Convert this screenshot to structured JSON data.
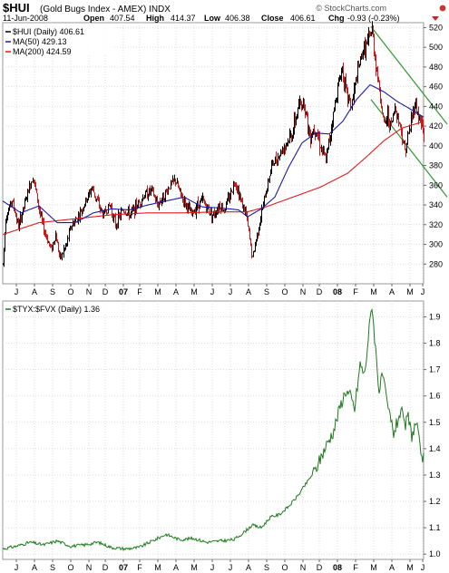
{
  "chart_data": [
    {
      "type": "ohlc-line",
      "title": "$HUI",
      "subtitle": "(Gold Bugs Index - AMEX) INDX",
      "date": "11-Jun-2008",
      "quote": {
        "open_label": "Open",
        "open": "407.54",
        "high_label": "High",
        "high": "414.37",
        "low_label": "Low",
        "low": "406.38",
        "close_label": "Close",
        "close": "406.61",
        "chg_label": "Chg",
        "chg": "-0.93 (-0.23%)"
      },
      "watermark": "© StockCharts.com",
      "legend": [
        {
          "label": "$HUI (Daily) 406.61",
          "color": "#000000"
        },
        {
          "label": "MA(50) 429.13",
          "color": "#1c1ca8"
        },
        {
          "label": "MA(200) 424.59",
          "color": "#dd1c1c"
        }
      ],
      "ylim": [
        260,
        525
      ],
      "y_ticks": [
        280,
        300,
        320,
        340,
        360,
        380,
        400,
        420,
        440,
        460,
        480,
        500,
        520
      ],
      "x_ticks": [
        "J",
        "A",
        "S",
        "O",
        "N",
        "D",
        "07",
        "F",
        "M",
        "A",
        "M",
        "J",
        "J",
        "A",
        "S",
        "O",
        "N",
        "D",
        "08",
        "F",
        "M",
        "A",
        "M",
        "J"
      ],
      "bold_ticks": [
        "07",
        "08"
      ],
      "price_keys": [
        [
          0,
          280
        ],
        [
          3,
          328
        ],
        [
          10,
          345
        ],
        [
          17,
          318
        ],
        [
          28,
          355
        ],
        [
          33,
          370
        ],
        [
          41,
          330
        ],
        [
          45,
          315
        ],
        [
          53,
          295
        ],
        [
          58,
          310
        ],
        [
          63,
          285
        ],
        [
          70,
          300
        ],
        [
          75,
          318
        ],
        [
          84,
          330
        ],
        [
          92,
          345
        ],
        [
          98,
          358
        ],
        [
          102,
          348
        ],
        [
          110,
          330
        ],
        [
          118,
          340
        ],
        [
          124,
          320
        ],
        [
          132,
          335
        ],
        [
          140,
          330
        ],
        [
          148,
          340
        ],
        [
          156,
          350
        ],
        [
          164,
          355
        ],
        [
          170,
          340
        ],
        [
          178,
          350
        ],
        [
          184,
          360
        ],
        [
          190,
          365
        ],
        [
          196,
          350
        ],
        [
          202,
          340
        ],
        [
          208,
          330
        ],
        [
          214,
          340
        ],
        [
          220,
          345
        ],
        [
          226,
          335
        ],
        [
          232,
          330
        ],
        [
          238,
          340
        ],
        [
          244,
          335
        ],
        [
          250,
          350
        ],
        [
          256,
          365
        ],
        [
          262,
          345
        ],
        [
          268,
          330
        ],
        [
          272,
          305
        ],
        [
          275,
          285
        ],
        [
          280,
          310
        ],
        [
          288,
          345
        ],
        [
          296,
          380
        ],
        [
          304,
          390
        ],
        [
          310,
          400
        ],
        [
          318,
          410
        ],
        [
          326,
          440
        ],
        [
          332,
          445
        ],
        [
          338,
          410
        ],
        [
          344,
          420
        ],
        [
          350,
          400
        ],
        [
          356,
          385
        ],
        [
          362,
          420
        ],
        [
          368,
          455
        ],
        [
          374,
          480
        ],
        [
          378,
          455
        ],
        [
          384,
          440
        ],
        [
          390,
          470
        ],
        [
          396,
          495
        ],
        [
          402,
          505
        ],
        [
          407,
          518
        ],
        [
          410,
          490
        ],
        [
          416,
          450
        ],
        [
          420,
          420
        ],
        [
          424,
          430
        ],
        [
          428,
          420
        ],
        [
          432,
          440
        ],
        [
          438,
          420
        ],
        [
          443,
          395
        ],
        [
          449,
          420
        ],
        [
          454,
          445
        ],
        [
          458,
          430
        ],
        [
          462,
          420
        ],
        [
          464,
          406.61
        ]
      ],
      "ma50_keys": [
        [
          0,
          344
        ],
        [
          20,
          332
        ],
        [
          40,
          339
        ],
        [
          60,
          322
        ],
        [
          80,
          322
        ],
        [
          100,
          332
        ],
        [
          120,
          336
        ],
        [
          140,
          335
        ],
        [
          160,
          340
        ],
        [
          180,
          344
        ],
        [
          200,
          348
        ],
        [
          220,
          338
        ],
        [
          240,
          337
        ],
        [
          260,
          335
        ],
        [
          270,
          328
        ],
        [
          285,
          336
        ],
        [
          300,
          348
        ],
        [
          315,
          378
        ],
        [
          330,
          403
        ],
        [
          345,
          413
        ],
        [
          360,
          412
        ],
        [
          375,
          425
        ],
        [
          390,
          447
        ],
        [
          405,
          462
        ],
        [
          420,
          455
        ],
        [
          435,
          445
        ],
        [
          450,
          437
        ],
        [
          464,
          429.13
        ]
      ],
      "ma200_keys": [
        [
          0,
          310
        ],
        [
          40,
          322
        ],
        [
          80,
          326
        ],
        [
          120,
          330
        ],
        [
          160,
          332
        ],
        [
          200,
          332
        ],
        [
          240,
          333
        ],
        [
          270,
          333
        ],
        [
          290,
          338
        ],
        [
          320,
          348
        ],
        [
          350,
          358
        ],
        [
          380,
          372
        ],
        [
          400,
          388
        ],
        [
          420,
          405
        ],
        [
          440,
          418
        ],
        [
          464,
          424.59
        ]
      ],
      "trend_lines": [
        {
          "from": [
            409,
            521
          ],
          "to": [
            493,
            422
          ]
        },
        {
          "from": [
            409,
            447
          ],
          "to": [
            493,
            348
          ]
        }
      ]
    },
    {
      "type": "line",
      "legend": [
        {
          "label": "$TYX:$FVX (Daily) 1.36",
          "color": "#1e7a1e"
        }
      ],
      "ylim": [
        0.98,
        1.96
      ],
      "y_ticks": [
        1.0,
        1.1,
        1.2,
        1.3,
        1.4,
        1.5,
        1.6,
        1.7,
        1.8,
        1.9
      ],
      "x_ticks": [
        "J",
        "A",
        "S",
        "O",
        "N",
        "D",
        "07",
        "F",
        "M",
        "A",
        "M",
        "J",
        "J",
        "A",
        "S",
        "O",
        "N",
        "D",
        "08",
        "F",
        "M",
        "A",
        "M",
        "J"
      ],
      "bold_ticks": [
        "07",
        "08"
      ],
      "ratio_keys": [
        [
          0,
          1.02
        ],
        [
          15,
          1.03
        ],
        [
          30,
          1.045
        ],
        [
          45,
          1.035
        ],
        [
          60,
          1.05
        ],
        [
          75,
          1.03
        ],
        [
          90,
          1.035
        ],
        [
          105,
          1.045
        ],
        [
          120,
          1.025
        ],
        [
          135,
          1.02
        ],
        [
          150,
          1.025
        ],
        [
          165,
          1.05
        ],
        [
          180,
          1.075
        ],
        [
          195,
          1.055
        ],
        [
          210,
          1.06
        ],
        [
          225,
          1.045
        ],
        [
          240,
          1.05
        ],
        [
          255,
          1.055
        ],
        [
          265,
          1.08
        ],
        [
          275,
          1.11
        ],
        [
          285,
          1.1
        ],
        [
          295,
          1.14
        ],
        [
          305,
          1.15
        ],
        [
          315,
          1.18
        ],
        [
          325,
          1.22
        ],
        [
          335,
          1.27
        ],
        [
          345,
          1.32
        ],
        [
          355,
          1.4
        ],
        [
          365,
          1.47
        ],
        [
          372,
          1.56
        ],
        [
          378,
          1.62
        ],
        [
          383,
          1.6
        ],
        [
          388,
          1.55
        ],
        [
          394,
          1.72
        ],
        [
          399,
          1.68
        ],
        [
          403,
          1.82
        ],
        [
          407,
          1.95
        ],
        [
          411,
          1.78
        ],
        [
          415,
          1.62
        ],
        [
          419,
          1.68
        ],
        [
          423,
          1.58
        ],
        [
          427,
          1.52
        ],
        [
          431,
          1.46
        ],
        [
          435,
          1.5
        ],
        [
          439,
          1.55
        ],
        [
          443,
          1.48
        ],
        [
          447,
          1.52
        ],
        [
          451,
          1.45
        ],
        [
          456,
          1.5
        ],
        [
          460,
          1.4
        ],
        [
          464,
          1.36
        ]
      ]
    }
  ]
}
